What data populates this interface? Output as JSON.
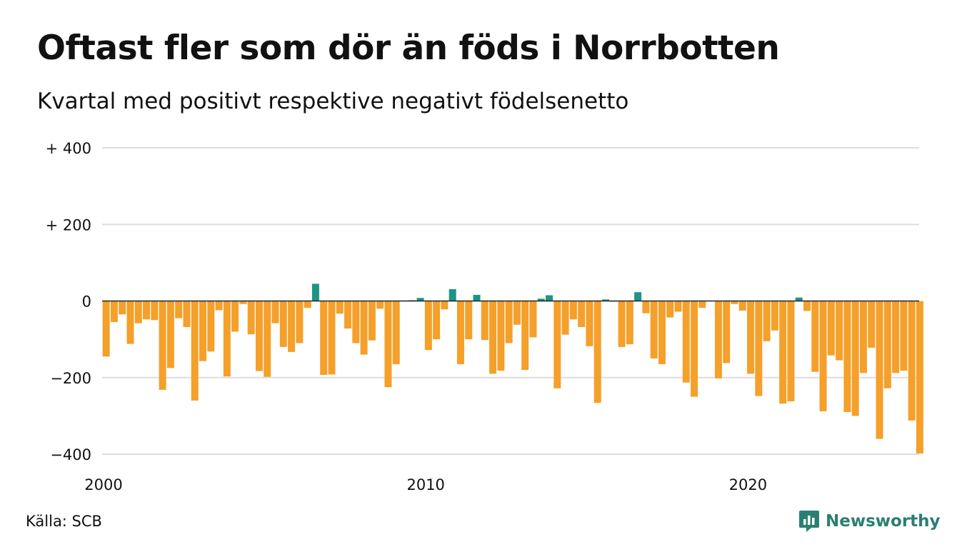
{
  "header": {
    "title": "Oftast fler som dör än föds i Norrbotten",
    "subtitle": "Kvartal med positivt respektive negativt födelsenetto"
  },
  "footer": {
    "source": "Källa: SCB",
    "brand": "Newsworthy",
    "brand_icon": "chart-bubble-icon"
  },
  "colors": {
    "positive": "#1e9484",
    "negative": "#f4a02a",
    "grid": "#dddddd",
    "zero_line": "#222222",
    "brand": "#2b7f72"
  },
  "chart_data": {
    "type": "bar",
    "title": "Oftast fler som dör än föds i Norrbotten",
    "subtitle": "Kvartal med positivt respektive negativt födelsenetto",
    "xlabel": "",
    "ylabel": "",
    "ylim": [
      -400,
      400
    ],
    "y_ticks": [
      {
        "value": 400,
        "label": "+ 400"
      },
      {
        "value": 200,
        "label": "+ 200"
      },
      {
        "value": 0,
        "label": "0"
      },
      {
        "value": -200,
        "label": "−200"
      },
      {
        "value": -400,
        "label": "−400"
      }
    ],
    "x_ticks": [
      {
        "value": 2000,
        "label": "2000"
      },
      {
        "value": 2010,
        "label": "2010"
      },
      {
        "value": 2020,
        "label": "2020"
      }
    ],
    "grid": true,
    "legend": "none",
    "periods_per_year": 4,
    "start_period": "2000 Q1",
    "values": [
      -145,
      -55,
      -35,
      -112,
      -58,
      -48,
      -50,
      -232,
      -175,
      -45,
      -68,
      -260,
      -157,
      -132,
      -24,
      -197,
      -80,
      -8,
      -87,
      -183,
      -198,
      -58,
      -120,
      -133,
      -110,
      -18,
      45,
      -193,
      -192,
      -33,
      -72,
      -110,
      -140,
      -103,
      -20,
      -225,
      -165,
      0,
      2,
      8,
      -128,
      -100,
      -22,
      31,
      -165,
      -100,
      16,
      -102,
      -190,
      -182,
      -110,
      -62,
      -180,
      -95,
      6,
      15,
      -228,
      -88,
      -48,
      -68,
      -118,
      -266,
      4,
      -2,
      -120,
      -113,
      23,
      -32,
      -150,
      -165,
      -43,
      -28,
      -213,
      -250,
      -18,
      0,
      -202,
      -162,
      -8,
      -25,
      -190,
      -248,
      -105,
      -77,
      -268,
      -262,
      9,
      -26,
      -185,
      -288,
      -142,
      -155,
      -290,
      -300,
      -188,
      -122,
      -360,
      -228,
      -188,
      -182,
      -312,
      -398
    ]
  }
}
